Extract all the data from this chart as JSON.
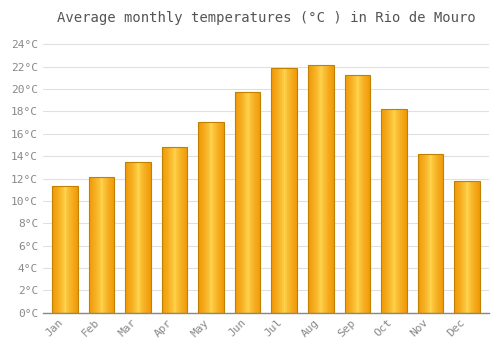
{
  "title": "Average monthly temperatures (°C ) in Rio de Mouro",
  "months": [
    "Jan",
    "Feb",
    "Mar",
    "Apr",
    "May",
    "Jun",
    "Jul",
    "Aug",
    "Sep",
    "Oct",
    "Nov",
    "Dec"
  ],
  "values": [
    11.3,
    12.1,
    13.5,
    14.8,
    17.1,
    19.7,
    21.9,
    22.2,
    21.3,
    18.2,
    14.2,
    11.8
  ],
  "bar_color_center": "#FFD060",
  "bar_color_edge": "#F0A000",
  "bar_color_top": "#F0A800",
  "bar_outline_color": "#C08000",
  "background_color": "#FFFFFF",
  "grid_color": "#E0E0E0",
  "ylim": [
    0,
    25
  ],
  "ytick_step": 2,
  "title_fontsize": 10,
  "tick_fontsize": 8,
  "tick_color": "#888888",
  "axis_color": "#888888",
  "font_family": "monospace"
}
